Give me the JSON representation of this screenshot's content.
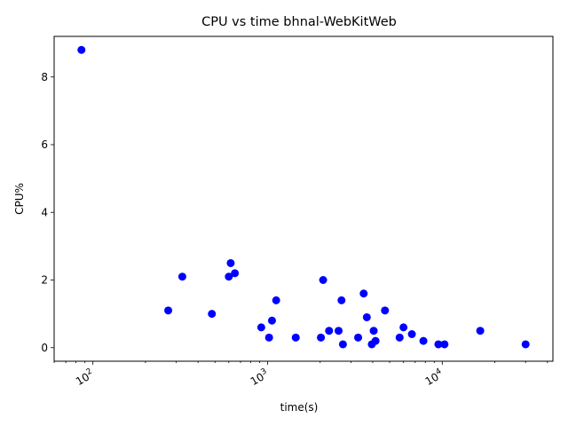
{
  "chart_data": {
    "type": "scatter",
    "title": "CPU vs time bhnal-WebKitWeb",
    "xlabel": "time(s)",
    "ylabel": "CPU%",
    "xscale": "log",
    "xlim": [
      60,
      43000
    ],
    "ylim": [
      -0.4,
      9.2
    ],
    "grid": false,
    "marker_color": "#0000ff",
    "x_ticks": [
      {
        "value": 100,
        "base": "10",
        "exp": "2"
      },
      {
        "value": 1000,
        "base": "10",
        "exp": "3"
      },
      {
        "value": 10000,
        "base": "10",
        "exp": "4"
      }
    ],
    "y_ticks": [
      0,
      2,
      4,
      6,
      8
    ],
    "points": [
      {
        "x": 86,
        "y": 8.8
      },
      {
        "x": 270,
        "y": 1.1
      },
      {
        "x": 325,
        "y": 2.1
      },
      {
        "x": 480,
        "y": 1.0
      },
      {
        "x": 600,
        "y": 2.1
      },
      {
        "x": 615,
        "y": 2.5
      },
      {
        "x": 650,
        "y": 2.2
      },
      {
        "x": 920,
        "y": 0.6
      },
      {
        "x": 1020,
        "y": 0.3
      },
      {
        "x": 1060,
        "y": 0.8
      },
      {
        "x": 1120,
        "y": 1.4
      },
      {
        "x": 1450,
        "y": 0.3
      },
      {
        "x": 2020,
        "y": 0.3
      },
      {
        "x": 2080,
        "y": 2.0
      },
      {
        "x": 2250,
        "y": 0.5
      },
      {
        "x": 2550,
        "y": 0.5
      },
      {
        "x": 2650,
        "y": 1.4
      },
      {
        "x": 2700,
        "y": 0.1
      },
      {
        "x": 3300,
        "y": 0.3
      },
      {
        "x": 3550,
        "y": 1.6
      },
      {
        "x": 3700,
        "y": 0.9
      },
      {
        "x": 3950,
        "y": 0.1
      },
      {
        "x": 4050,
        "y": 0.5
      },
      {
        "x": 4150,
        "y": 0.2
      },
      {
        "x": 4700,
        "y": 1.1
      },
      {
        "x": 5700,
        "y": 0.3
      },
      {
        "x": 6000,
        "y": 0.6
      },
      {
        "x": 6700,
        "y": 0.4
      },
      {
        "x": 7800,
        "y": 0.2
      },
      {
        "x": 9500,
        "y": 0.1
      },
      {
        "x": 10300,
        "y": 0.1
      },
      {
        "x": 16500,
        "y": 0.5
      },
      {
        "x": 30000,
        "y": 0.1
      }
    ]
  }
}
